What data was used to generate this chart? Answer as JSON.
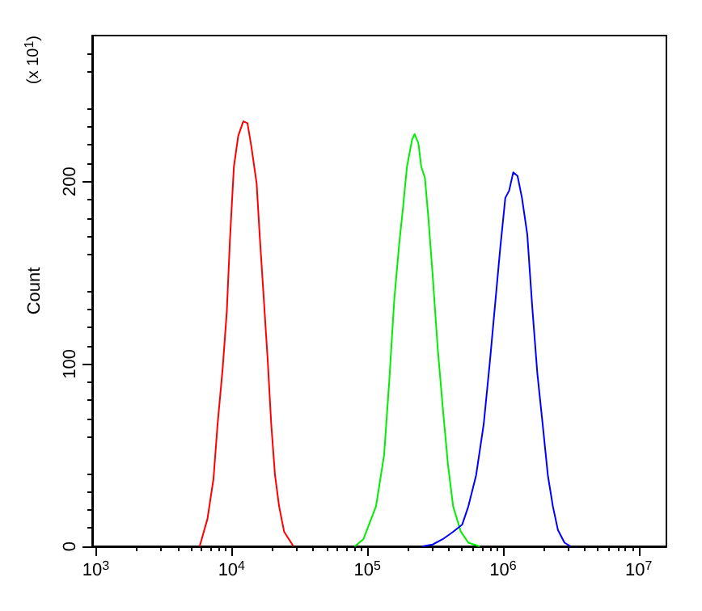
{
  "chart_data": {
    "type": "line",
    "ylabel": "Count",
    "annotations": [
      "(x 10$^{1}$)"
    ],
    "xlim": [
      940,
      16000000
    ],
    "ylim": [
      0,
      280
    ],
    "log": "x",
    "grid": false,
    "marker": "none",
    "line_style": "solid",
    "xticks": [
      {
        "value": 1000,
        "label": "10$^{3}$"
      },
      {
        "value": 10000,
        "label": "10$^{4}$"
      },
      {
        "value": 100000,
        "label": "10$^{5}$"
      },
      {
        "value": 1000000,
        "label": "10$^{6}$"
      },
      {
        "value": 10000000,
        "label": "10$^{7}$"
      }
    ],
    "yticks": [
      0,
      100,
      200
    ],
    "series": [
      {
        "color": "#ff0000",
        "x": [
          5820,
          6640,
          7360,
          7890,
          8610,
          9230,
          9730,
          10400,
          11200,
          12200,
          13100,
          14000,
          15300,
          16100,
          17300,
          18500,
          19600,
          20900,
          22400,
          24400,
          28600
        ],
        "values": [
          0,
          15,
          37,
          67,
          98,
          129,
          168,
          208,
          225,
          233,
          232,
          219,
          199,
          171,
          135,
          101,
          67,
          39,
          22,
          8,
          0
        ]
      },
      {
        "color": "#00ee00",
        "x": [
          80900,
          93800,
          116000,
          133000,
          145000,
          158000,
          172000,
          183000,
          196000,
          214000,
          223000,
          238000,
          250000,
          266000,
          282000,
          303000,
          330000,
          361000,
          393000,
          429000,
          489000,
          556000,
          673000
        ],
        "values": [
          0,
          4,
          22,
          50,
          90,
          135,
          166,
          185,
          208,
          223,
          226,
          221,
          208,
          202,
          180,
          149,
          109,
          75,
          45,
          22,
          8,
          2,
          0
        ]
      },
      {
        "color": "#0000ff",
        "x": [
          255000,
          303000,
          361000,
          429000,
          501000,
          556000,
          634000,
          721000,
          800000,
          873000,
          953000,
          1040000,
          1110000,
          1190000,
          1280000,
          1380000,
          1510000,
          1640000,
          1790000,
          1960000,
          2140000,
          2330000,
          2540000,
          2840000,
          3150000
        ],
        "values": [
          0,
          1,
          4,
          8,
          12,
          22,
          39,
          67,
          101,
          132,
          163,
          191,
          195,
          205,
          203,
          191,
          171,
          132,
          95,
          67,
          39,
          22,
          9,
          2,
          0
        ]
      }
    ]
  }
}
